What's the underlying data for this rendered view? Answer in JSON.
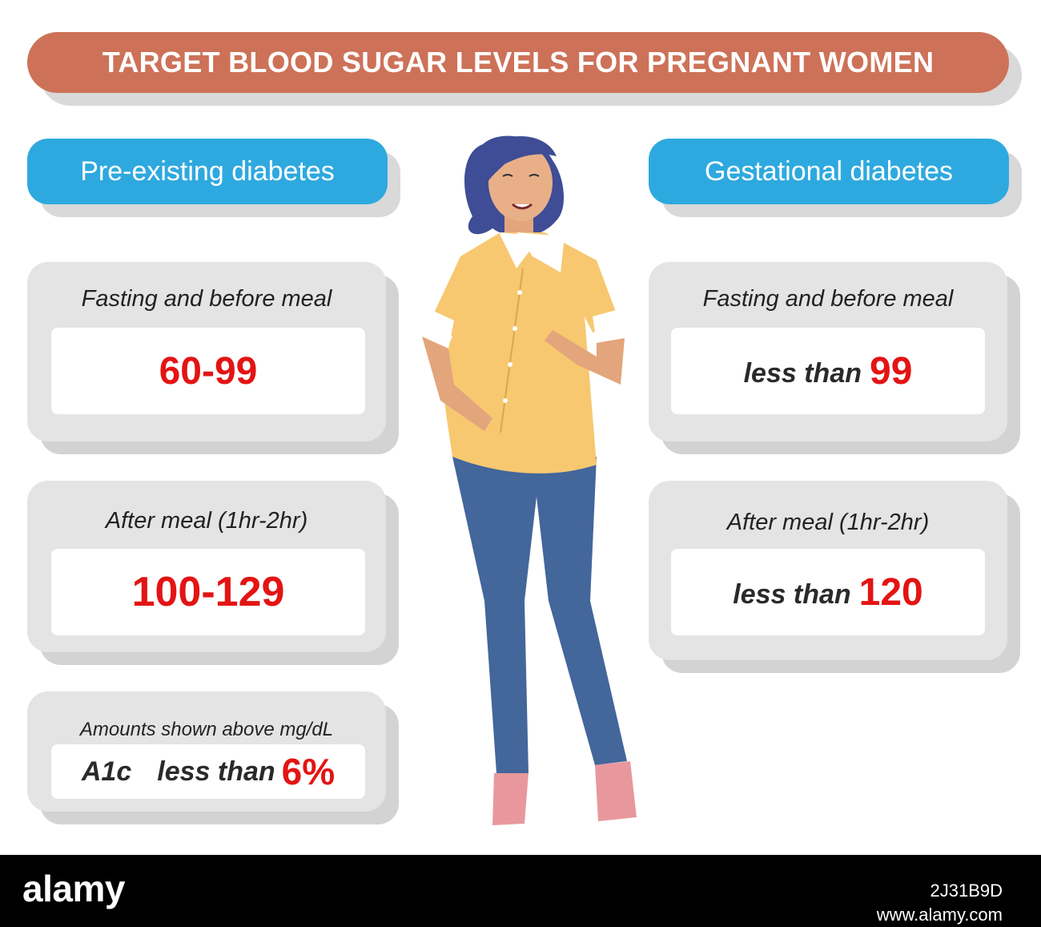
{
  "title": "TARGET BLOOD SUGAR LEVELS FOR PREGNANT WOMEN",
  "columns": {
    "left": {
      "heading": "Pre-existing diabetes",
      "cards": [
        {
          "label": "Fasting and before meal",
          "value": "60-99"
        },
        {
          "label": "After meal (1hr-2hr)",
          "value": "100-129"
        }
      ],
      "note": {
        "label": "Amounts shown above mg/dL",
        "a1c_label": "A1c",
        "a1c_prefix": "less than",
        "a1c_value": "6%"
      }
    },
    "right": {
      "heading": "Gestational diabetes",
      "cards": [
        {
          "label": "Fasting and before meal",
          "prefix": "less than",
          "value": "99"
        },
        {
          "label": "After meal (1hr-2hr)",
          "prefix": "less than",
          "value": "120"
        }
      ]
    }
  },
  "footer": {
    "logo_text": "alamy",
    "image_id": "2J31B9D",
    "site": "www.alamy.com"
  },
  "colors": {
    "title_bg": "#cd7258",
    "heading_bg": "#2ea9df",
    "value_red": "#e31414",
    "card_bg": "#e4e4e4"
  }
}
